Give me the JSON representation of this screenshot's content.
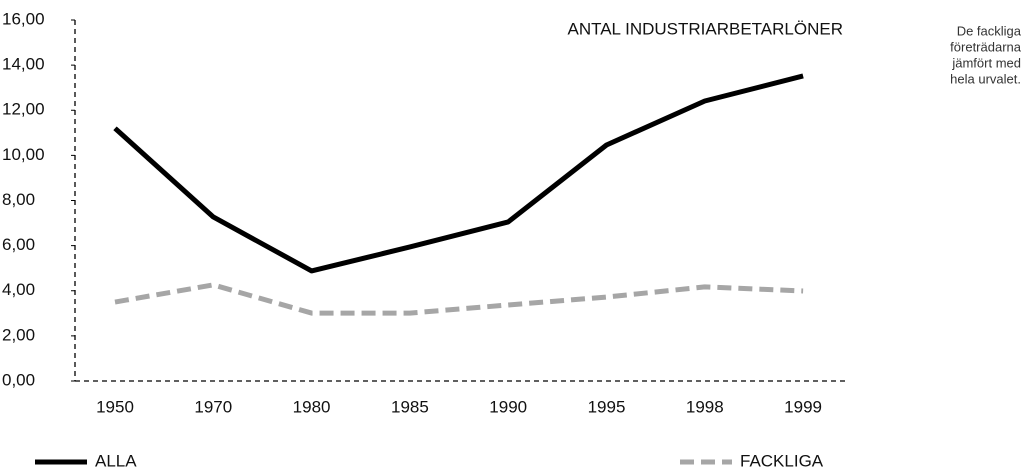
{
  "chart_data": {
    "type": "line",
    "title": "ANTAL INDUSTRIARBETARLÖNER",
    "annotations": [
      "De fackliga",
      "företrädarna",
      "jämfört med",
      "hela urvalet."
    ],
    "categories": [
      "1950",
      "1970",
      "1980",
      "1985",
      "1990",
      "1995",
      "1998",
      "1999"
    ],
    "series": [
      {
        "name": "ALLA",
        "color": "#000000",
        "dash": false,
        "values": [
          11.2,
          7.27,
          4.88,
          5.94,
          7.05,
          10.46,
          12.41,
          13.52
        ]
      },
      {
        "name": "FACKLIGA",
        "color": "#a6a6a6",
        "dash": true,
        "values": [
          3.5,
          4.26,
          3.01,
          3.01,
          3.37,
          3.72,
          4.17,
          3.99
        ]
      }
    ],
    "ylim": [
      0,
      16
    ],
    "yticks": [
      {
        "value": 0,
        "label": "0,00"
      },
      {
        "value": 2,
        "label": "2,00"
      },
      {
        "value": 4,
        "label": "4,00"
      },
      {
        "value": 6,
        "label": "6,00"
      },
      {
        "value": 8,
        "label": "8,00"
      },
      {
        "value": 10,
        "label": "10,00"
      },
      {
        "value": 12,
        "label": "12,00"
      },
      {
        "value": 14,
        "label": "14,00"
      },
      {
        "value": 16,
        "label": "16,00"
      }
    ],
    "grid": false
  }
}
